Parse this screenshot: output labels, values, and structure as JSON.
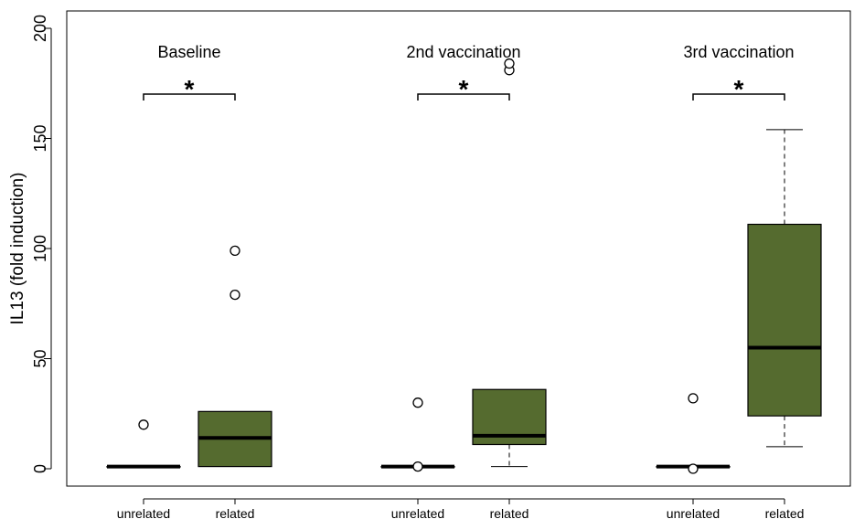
{
  "chart_data": {
    "type": "boxplot",
    "ylabel": "IL13 (fold induction)",
    "ylim": [
      0,
      200
    ],
    "y_ticks": [
      0,
      50,
      100,
      150,
      200
    ],
    "grid": false,
    "colors": {
      "unrelated": "#ffffff",
      "related": "#556b2f",
      "stroke": "#000000"
    },
    "significance_marker": "*",
    "panels": [
      {
        "title": "Baseline",
        "groups": [
          {
            "label": "unrelated",
            "q1": 1,
            "median": 1,
            "q3": 1,
            "whisker_low": 1,
            "whisker_high": 1,
            "outliers": [
              20
            ]
          },
          {
            "label": "related",
            "q1": 1,
            "median": 14,
            "q3": 26,
            "whisker_low": 1,
            "whisker_high": 26,
            "outliers": [
              79,
              99
            ]
          }
        ]
      },
      {
        "title": "2nd vaccination",
        "groups": [
          {
            "label": "unrelated",
            "q1": 1,
            "median": 1,
            "q3": 1,
            "whisker_low": 1,
            "whisker_high": 1,
            "outliers": [
              1,
              30
            ]
          },
          {
            "label": "related",
            "q1": 11,
            "median": 15,
            "q3": 36,
            "whisker_low": 1,
            "whisker_high": 36,
            "outliers": [
              181,
              184
            ]
          }
        ]
      },
      {
        "title": "3rd vaccination",
        "groups": [
          {
            "label": "unrelated",
            "q1": 1,
            "median": 1,
            "q3": 1,
            "whisker_low": 1,
            "whisker_high": 1,
            "outliers": [
              0,
              32
            ]
          },
          {
            "label": "related",
            "q1": 24,
            "median": 55,
            "q3": 111,
            "whisker_low": 10,
            "whisker_high": 154,
            "outliers": []
          }
        ]
      }
    ]
  }
}
